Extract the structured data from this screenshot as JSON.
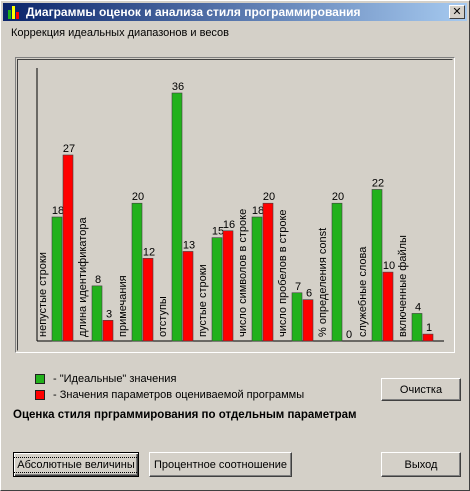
{
  "window": {
    "title": "Диаграммы оценок и анализа стиля программирования",
    "subtitle": "Коррекция идеальных диапазонов и весов"
  },
  "chart_data": {
    "type": "bar",
    "categories": [
      "непустые строки",
      "длина идентификатора",
      "примечания",
      "отступы",
      "пустые строки",
      "число символов в строке",
      "число пробелов в строке",
      "% определения const",
      "служебные слова",
      "включенные файлы"
    ],
    "series": [
      {
        "name": "- \"Идеальные\" значения",
        "color": "#22b11c",
        "values": [
          18,
          8,
          20,
          36,
          15,
          18,
          7,
          20,
          22,
          4
        ]
      },
      {
        "name": "- Значения параметров оцениваемой программы",
        "color": "#ff0000",
        "values": [
          27,
          3,
          12,
          13,
          16,
          20,
          6,
          0,
          10,
          1
        ]
      }
    ],
    "ylim": [
      0,
      36
    ],
    "grid": false
  },
  "legend": {
    "ideal": "- \"Идеальные\" значения",
    "actual": "- Значения параметров оцениваемой программы",
    "ideal_color": "#22b11c",
    "actual_color": "#ff0000"
  },
  "buttons": {
    "clear": "Очистка",
    "absolute": "Абсолютные величины",
    "percent": "Процентное соотношение",
    "exit": "Выход"
  },
  "section": {
    "heading": "Оценка стиля прграммирования по отдельным параметрам"
  }
}
